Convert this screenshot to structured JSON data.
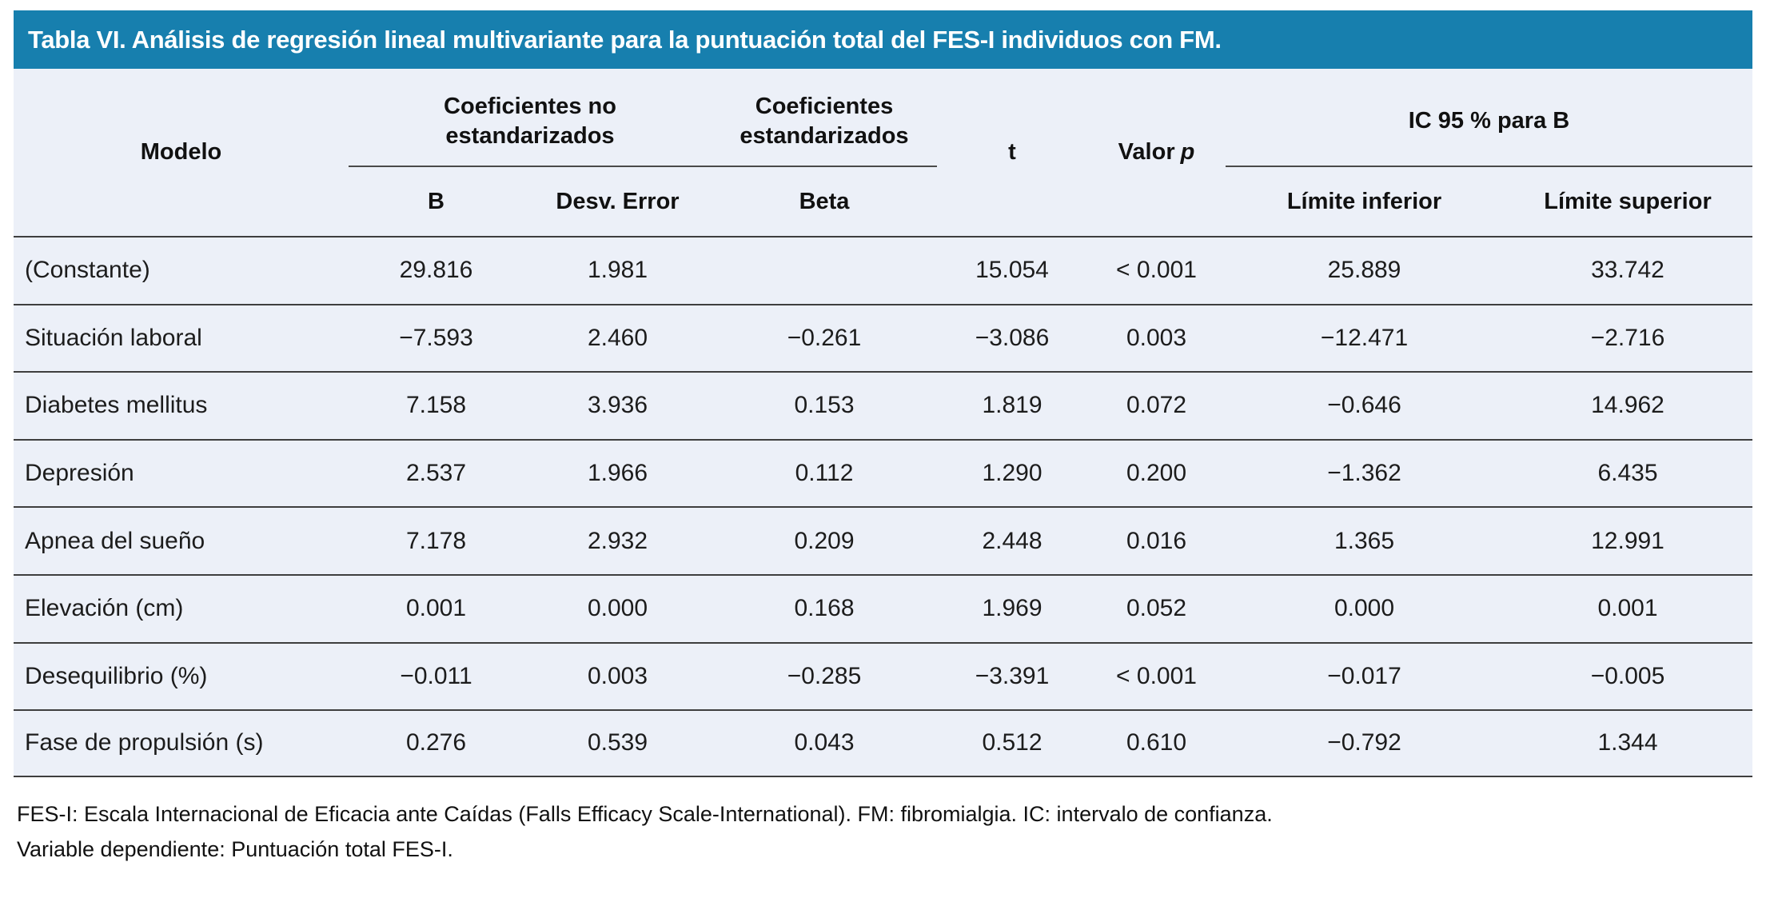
{
  "title": "Tabla VI. Análisis de regresión lineal multivariante para la puntuación total del FES-I individuos con FM.",
  "colors": {
    "title_bar_bg": "#177fae",
    "title_text": "#ffffff",
    "table_body_bg": "#ecf0f8",
    "rule_line": "#3e3e3e",
    "text": "#1c1c1c"
  },
  "header": {
    "model_label": "Modelo",
    "group_unstandardized": "Coeficientes no estandarizados",
    "group_standardized": "Coeficientes estandarizados",
    "t_label": "t",
    "p_label_prefix": "Valor",
    "p_label_italic": "p",
    "ic_label": "IC 95 % para B",
    "sub_b": "B",
    "sub_std_error": "Desv. Error",
    "sub_beta": "Beta",
    "sub_lower": "Límite inferior",
    "sub_upper": "Límite superior"
  },
  "chart_data": {
    "type": "table",
    "columns": [
      "Modelo",
      "B",
      "Desv. Error",
      "Beta",
      "t",
      "Valor p",
      "Límite inferior",
      "Límite superior"
    ],
    "rows": [
      {
        "model": "(Constante)",
        "b": "29.816",
        "std_error": "1.981",
        "beta": "",
        "t": "15.054",
        "p": "< 0.001",
        "lower": "25.889",
        "upper": "33.742"
      },
      {
        "model": "Situación laboral",
        "b": "−7.593",
        "std_error": "2.460",
        "beta": "−0.261",
        "t": "−3.086",
        "p": "0.003",
        "lower": "−12.471",
        "upper": "−2.716"
      },
      {
        "model": "Diabetes mellitus",
        "b": "7.158",
        "std_error": "3.936",
        "beta": "0.153",
        "t": "1.819",
        "p": "0.072",
        "lower": "−0.646",
        "upper": "14.962"
      },
      {
        "model": "Depresión",
        "b": "2.537",
        "std_error": "1.966",
        "beta": "0.112",
        "t": "1.290",
        "p": "0.200",
        "lower": "−1.362",
        "upper": "6.435"
      },
      {
        "model": "Apnea del sueño",
        "b": "7.178",
        "std_error": "2.932",
        "beta": "0.209",
        "t": "2.448",
        "p": "0.016",
        "lower": "1.365",
        "upper": "12.991"
      },
      {
        "model": "Elevación (cm)",
        "b": "0.001",
        "std_error": "0.000",
        "beta": "0.168",
        "t": "1.969",
        "p": "0.052",
        "lower": "0.000",
        "upper": "0.001"
      },
      {
        "model": "Desequilibrio (%)",
        "b": "−0.011",
        "std_error": "0.003",
        "beta": "−0.285",
        "t": "−3.391",
        "p": "< 0.001",
        "lower": "−0.017",
        "upper": "−0.005"
      },
      {
        "model": "Fase de propulsión (s)",
        "b": "0.276",
        "std_error": "0.539",
        "beta": "0.043",
        "t": "0.512",
        "p": "0.610",
        "lower": "−0.792",
        "upper": "1.344"
      }
    ]
  },
  "footnotes": [
    "FES-I: Escala Internacional de Eficacia ante Caídas (Falls Efficacy Scale-International). FM: fibromialgia. IC: intervalo de confianza.",
    "Variable dependiente: Puntuación total FES-I."
  ]
}
